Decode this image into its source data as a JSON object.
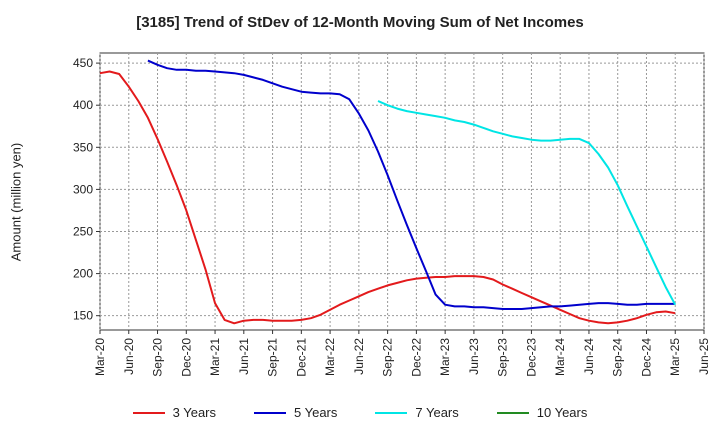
{
  "chart_data": {
    "type": "line",
    "title": "[3185]  Trend of StDev of 12-Month Moving Sum of Net Incomes",
    "ylabel": "Amount (million yen)",
    "xlabel": "",
    "ylim": [
      133,
      462
    ],
    "yticks": [
      150,
      200,
      250,
      300,
      350,
      400,
      450
    ],
    "x_categories": [
      "Mar-20",
      "Jun-20",
      "Sep-20",
      "Dec-20",
      "Mar-21",
      "Jun-21",
      "Sep-21",
      "Dec-21",
      "Mar-22",
      "Jun-22",
      "Sep-22",
      "Dec-22",
      "Mar-23",
      "Jun-23",
      "Sep-23",
      "Dec-23",
      "Mar-24",
      "Jun-24",
      "Sep-24",
      "Dec-24",
      "Mar-25",
      "Jun-25"
    ],
    "grid": true,
    "legend_position": "bottom",
    "series": [
      {
        "name": "3 Years",
        "color": "#e31a1c",
        "points": [
          [
            "Mar-20",
            438
          ],
          [
            "Apr-20",
            440
          ],
          [
            "May-20",
            437
          ],
          [
            "Jun-20",
            422
          ],
          [
            "Jul-20",
            405
          ],
          [
            "Aug-20",
            385
          ],
          [
            "Sep-20",
            360
          ],
          [
            "Oct-20",
            333
          ],
          [
            "Nov-20",
            305
          ],
          [
            "Dec-20",
            275
          ],
          [
            "Jan-21",
            240
          ],
          [
            "Feb-21",
            205
          ],
          [
            "Mar-21",
            165
          ],
          [
            "Apr-21",
            145
          ],
          [
            "May-21",
            141
          ],
          [
            "Jun-21",
            144
          ],
          [
            "Jul-21",
            145
          ],
          [
            "Aug-21",
            145
          ],
          [
            "Sep-21",
            144
          ],
          [
            "Oct-21",
            144
          ],
          [
            "Nov-21",
            144
          ],
          [
            "Dec-21",
            145
          ],
          [
            "Jan-22",
            147
          ],
          [
            "Feb-22",
            151
          ],
          [
            "Mar-22",
            157
          ],
          [
            "Apr-22",
            163
          ],
          [
            "May-22",
            168
          ],
          [
            "Jun-22",
            173
          ],
          [
            "Jul-22",
            178
          ],
          [
            "Aug-22",
            182
          ],
          [
            "Sep-22",
            186
          ],
          [
            "Oct-22",
            189
          ],
          [
            "Nov-22",
            192
          ],
          [
            "Dec-22",
            194
          ],
          [
            "Jan-23",
            195
          ],
          [
            "Feb-23",
            196
          ],
          [
            "Mar-23",
            196
          ],
          [
            "Apr-23",
            197
          ],
          [
            "May-23",
            197
          ],
          [
            "Jun-23",
            197
          ],
          [
            "Jul-23",
            196
          ],
          [
            "Aug-23",
            193
          ],
          [
            "Sep-23",
            187
          ],
          [
            "Oct-23",
            182
          ],
          [
            "Nov-23",
            177
          ],
          [
            "Dec-23",
            172
          ],
          [
            "Jan-24",
            167
          ],
          [
            "Feb-24",
            162
          ],
          [
            "Mar-24",
            157
          ],
          [
            "Apr-24",
            152
          ],
          [
            "May-24",
            147
          ],
          [
            "Jun-24",
            144
          ],
          [
            "Jul-24",
            142
          ],
          [
            "Aug-24",
            141
          ],
          [
            "Sep-24",
            142
          ],
          [
            "Oct-24",
            144
          ],
          [
            "Nov-24",
            147
          ],
          [
            "Dec-24",
            151
          ],
          [
            "Jan-25",
            154
          ],
          [
            "Feb-25",
            155
          ],
          [
            "Mar-25",
            153
          ]
        ]
      },
      {
        "name": "5 Years",
        "color": "#0000cc",
        "points": [
          [
            "Aug-20",
            453
          ],
          [
            "Sep-20",
            448
          ],
          [
            "Oct-20",
            444
          ],
          [
            "Nov-20",
            442
          ],
          [
            "Dec-20",
            442
          ],
          [
            "Jan-21",
            441
          ],
          [
            "Feb-21",
            441
          ],
          [
            "Mar-21",
            440
          ],
          [
            "Apr-21",
            439
          ],
          [
            "May-21",
            438
          ],
          [
            "Jun-21",
            436
          ],
          [
            "Jul-21",
            433
          ],
          [
            "Aug-21",
            430
          ],
          [
            "Sep-21",
            426
          ],
          [
            "Oct-21",
            422
          ],
          [
            "Nov-21",
            419
          ],
          [
            "Dec-21",
            416
          ],
          [
            "Jan-22",
            415
          ],
          [
            "Feb-22",
            414
          ],
          [
            "Mar-22",
            414
          ],
          [
            "Apr-22",
            413
          ],
          [
            "May-22",
            407
          ],
          [
            "Jun-22",
            390
          ],
          [
            "Jul-22",
            370
          ],
          [
            "Aug-22",
            345
          ],
          [
            "Sep-22",
            317
          ],
          [
            "Oct-22",
            287
          ],
          [
            "Nov-22",
            258
          ],
          [
            "Dec-22",
            230
          ],
          [
            "Jan-23",
            203
          ],
          [
            "Feb-23",
            175
          ],
          [
            "Mar-23",
            163
          ],
          [
            "Apr-23",
            161
          ],
          [
            "May-23",
            161
          ],
          [
            "Jun-23",
            160
          ],
          [
            "Jul-23",
            160
          ],
          [
            "Aug-23",
            159
          ],
          [
            "Sep-23",
            158
          ],
          [
            "Oct-23",
            158
          ],
          [
            "Nov-23",
            158
          ],
          [
            "Dec-23",
            159
          ],
          [
            "Jan-24",
            160
          ],
          [
            "Feb-24",
            161
          ],
          [
            "Mar-24",
            161
          ],
          [
            "Apr-24",
            162
          ],
          [
            "May-24",
            163
          ],
          [
            "Jun-24",
            164
          ],
          [
            "Jul-24",
            165
          ],
          [
            "Aug-24",
            165
          ],
          [
            "Sep-24",
            164
          ],
          [
            "Oct-24",
            163
          ],
          [
            "Nov-24",
            163
          ],
          [
            "Dec-24",
            164
          ],
          [
            "Jan-25",
            164
          ],
          [
            "Feb-25",
            164
          ],
          [
            "Mar-25",
            164
          ]
        ]
      },
      {
        "name": "7 Years",
        "color": "#00e5e5",
        "points": [
          [
            "Aug-22",
            405
          ],
          [
            "Sep-22",
            400
          ],
          [
            "Oct-22",
            396
          ],
          [
            "Nov-22",
            393
          ],
          [
            "Dec-22",
            391
          ],
          [
            "Jan-23",
            389
          ],
          [
            "Feb-23",
            387
          ],
          [
            "Mar-23",
            385
          ],
          [
            "Apr-23",
            382
          ],
          [
            "May-23",
            380
          ],
          [
            "Jun-23",
            377
          ],
          [
            "Jul-23",
            373
          ],
          [
            "Aug-23",
            369
          ],
          [
            "Sep-23",
            366
          ],
          [
            "Oct-23",
            363
          ],
          [
            "Nov-23",
            361
          ],
          [
            "Dec-23",
            359
          ],
          [
            "Jan-24",
            358
          ],
          [
            "Feb-24",
            358
          ],
          [
            "Mar-24",
            359
          ],
          [
            "Apr-24",
            360
          ],
          [
            "May-24",
            360
          ],
          [
            "Jun-24",
            355
          ],
          [
            "Jul-24",
            342
          ],
          [
            "Aug-24",
            326
          ],
          [
            "Sep-24",
            305
          ],
          [
            "Oct-24",
            280
          ],
          [
            "Nov-24",
            256
          ],
          [
            "Dec-24",
            232
          ],
          [
            "Jan-25",
            208
          ],
          [
            "Feb-25",
            184
          ],
          [
            "Mar-25",
            163
          ]
        ]
      },
      {
        "name": "10 Years",
        "color": "#228b22",
        "points": []
      }
    ]
  }
}
